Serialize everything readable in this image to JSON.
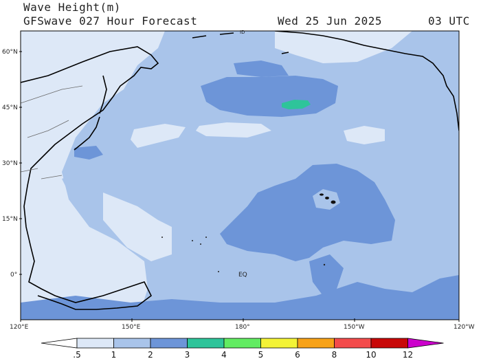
{
  "header": {
    "title": "Wave Height(m)",
    "subtitle": "GFSwave 027 Hour Forecast",
    "date": "Wed 25 Jun 2025",
    "time": "03 UTC"
  },
  "map": {
    "lat_labels": [
      "60°N",
      "45°N",
      "30°N",
      "15°N",
      "0°"
    ],
    "lon_labels": [
      "120°E",
      "150°E",
      "180°",
      "150°W",
      "120°W"
    ],
    "feature_labels": [
      "EQ",
      "ID"
    ]
  },
  "legend": {
    "title": "Wave Height(m)",
    "tick_labels": [
      ".5",
      "1",
      "2",
      "3",
      "4",
      "5",
      "6",
      "8",
      "10",
      "12"
    ],
    "colors": [
      "#ffffff",
      "#dde8f7",
      "#a9c4ea",
      "#6d95d8",
      "#2ec49a",
      "#62ec62",
      "#f3f336",
      "#f7a218",
      "#f34b4b",
      "#c80808",
      "#cc00cc"
    ]
  }
}
